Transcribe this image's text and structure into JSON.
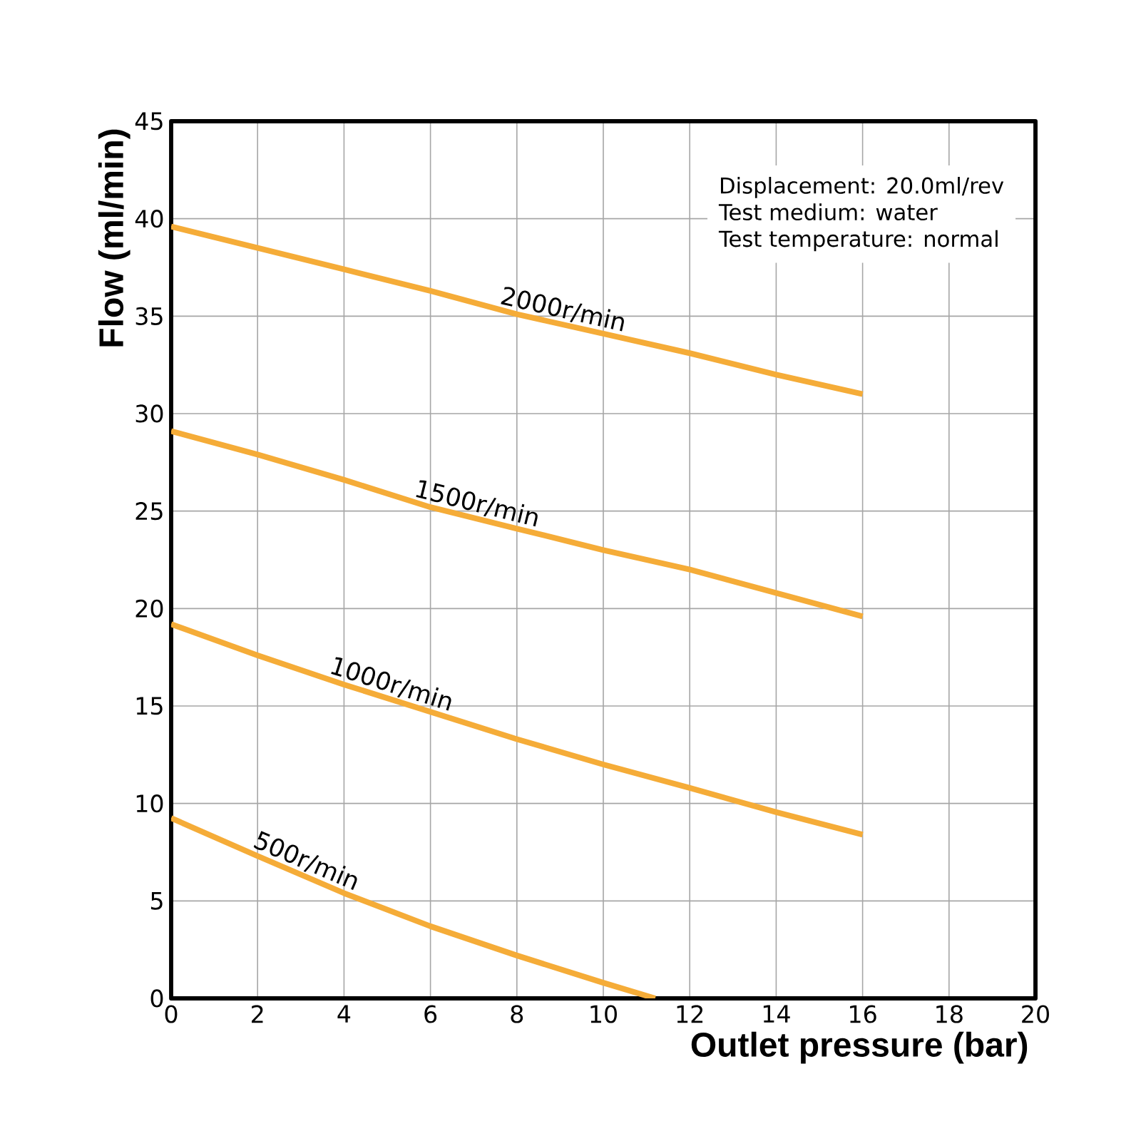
{
  "chart_data": {
    "type": "line",
    "xlabel": "Outlet pressure (bar)",
    "ylabel": "Flow (ml/min)",
    "xlim": [
      0,
      20
    ],
    "ylim": [
      0,
      45
    ],
    "xticks": [
      0,
      2,
      4,
      6,
      8,
      10,
      12,
      14,
      16,
      18,
      20
    ],
    "yticks": [
      0,
      5,
      10,
      15,
      20,
      25,
      30,
      35,
      40,
      45
    ],
    "grid": true,
    "legend": false,
    "marker": "none",
    "line_style": "solid",
    "annotations": [
      "Displacement: 20.0ml/rev",
      "Test medium: water",
      "Test temperature: normal"
    ],
    "series": [
      {
        "name": "2000r/min",
        "color": "#f5ac38",
        "x": [
          0,
          2,
          4,
          6,
          8,
          10,
          12,
          14,
          16
        ],
        "values": [
          39.6,
          38.5,
          37.4,
          36.3,
          35.1,
          34.1,
          33.1,
          32.0,
          31.0
        ]
      },
      {
        "name": "1500r/min",
        "color": "#f5ac38",
        "x": [
          0,
          2,
          4,
          6,
          8,
          10,
          12,
          14,
          16
        ],
        "values": [
          29.1,
          27.9,
          26.6,
          25.2,
          24.1,
          23.0,
          22.0,
          20.8,
          19.6
        ]
      },
      {
        "name": "1000r/min",
        "color": "#f5ac38",
        "x": [
          0,
          2,
          4,
          6,
          8,
          10,
          12,
          14,
          16
        ],
        "values": [
          19.2,
          17.6,
          16.1,
          14.7,
          13.3,
          12.0,
          10.8,
          9.55,
          8.4
        ]
      },
      {
        "name": "500r/min",
        "color": "#f5ac38",
        "x": [
          0,
          2,
          4,
          6,
          8,
          10,
          11.2
        ],
        "values": [
          9.25,
          7.3,
          5.4,
          3.7,
          2.2,
          0.8,
          0
        ]
      }
    ]
  }
}
